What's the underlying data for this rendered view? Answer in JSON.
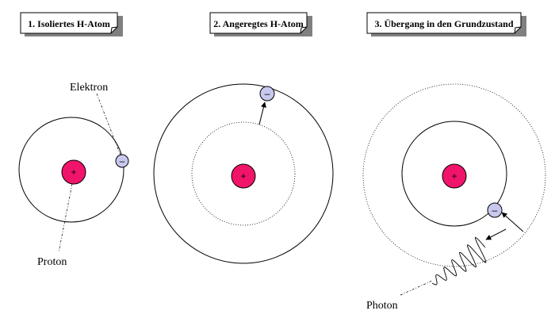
{
  "panels": [
    {
      "title": "1. Isoliertes H-Atom"
    },
    {
      "title": "2. Angeregtes H-Atom"
    },
    {
      "title": "3. Übergang in den Grundzustand"
    }
  ],
  "labels": {
    "electron": "Elektron",
    "proton": "Proton",
    "photon": "Photon"
  },
  "symbols": {
    "proton_sign": "+",
    "electron_sign": "–"
  },
  "colors": {
    "proton_fill": "#f0156a",
    "electron_fill": "#c8c8ef",
    "title_shadow": "#808080"
  }
}
